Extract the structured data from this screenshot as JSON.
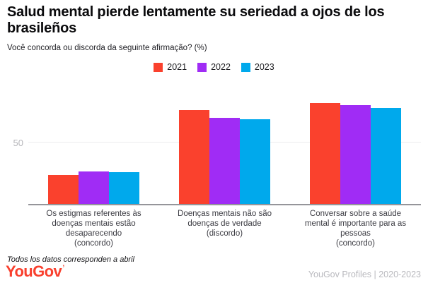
{
  "header": {
    "title": "Salud mental pierde lentamente su seriedad a ojos de los brasileños",
    "subtitle": "Você concorda ou discorda da seguinte afirmação? (%)"
  },
  "legend": [
    {
      "label": "2021",
      "color": "#fa412d"
    },
    {
      "label": "2022",
      "color": "#a02cf5"
    },
    {
      "label": "2023",
      "color": "#00a9ec"
    }
  ],
  "chart_data": {
    "type": "bar",
    "title": "Salud mental pierde lentamente su seriedad a ojos de los brasileños",
    "subtitle": "Você concorda ou discorda da seguinte afirmação? (%)",
    "categories": [
      {
        "full": "Os estigmas referentes às doenças mentais estão desaparecendo (concordo)",
        "lines": [
          "Os estigmas referentes às",
          "doenças mentais estão",
          "desaparecendo",
          "(concordo)"
        ]
      },
      {
        "full": "Doenças mentais não são doenças de verdade (discordo)",
        "lines": [
          "Doenças mentais não são",
          "doenças de verdade",
          "(discordo)"
        ]
      },
      {
        "full": "Conversar sobre a saúde mental é importante para as pessoas (concordo)",
        "lines": [
          "Conversar sobre a saúde",
          "mental é importante para as",
          "pessoas",
          "(concordo)"
        ]
      }
    ],
    "series": [
      {
        "name": "2021",
        "color": "#fa412d",
        "values": [
          24,
          76,
          82
        ]
      },
      {
        "name": "2022",
        "color": "#a02cf5",
        "values": [
          27,
          70,
          80
        ]
      },
      {
        "name": "2023",
        "color": "#00a9ec",
        "values": [
          26,
          69,
          78
        ]
      }
    ],
    "xlabel": "",
    "ylabel": "",
    "ylim": [
      0,
      100
    ],
    "yticks": [
      50
    ],
    "grid": "single horizontal gridline at 50",
    "legend_position": "top-center"
  },
  "footer": {
    "note": "Todos los datos corresponden a abril",
    "logo": "YouGov",
    "source": "YouGov Profiles | 2020-2023"
  }
}
